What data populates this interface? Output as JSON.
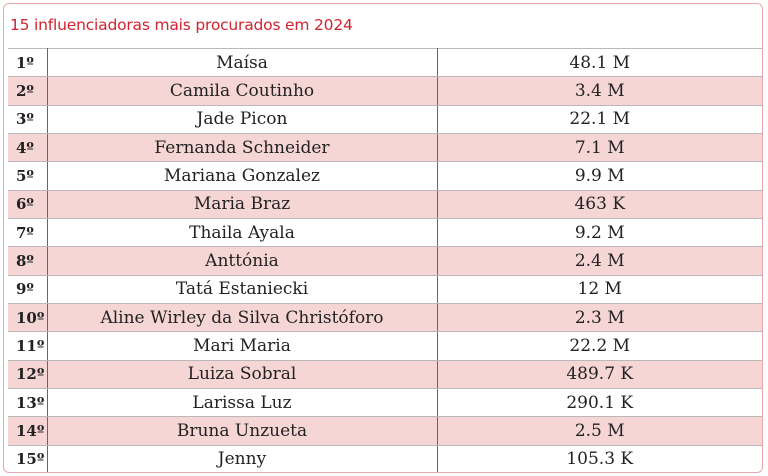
{
  "chart_data": {
    "type": "table",
    "title": "15 influenciadoras mais procurados em 2024",
    "columns": [
      "rank",
      "name",
      "value"
    ],
    "rows": [
      {
        "rank": "1º",
        "name": "Maísa",
        "value": "48.1 M"
      },
      {
        "rank": "2º",
        "name": "Camila Coutinho",
        "value": "3.4 M"
      },
      {
        "rank": "3º",
        "name": "Jade Picon",
        "value": "22.1 M"
      },
      {
        "rank": "4º",
        "name": "Fernanda Schneider",
        "value": "7.1 M"
      },
      {
        "rank": "5º",
        "name": "Mariana Gonzalez",
        "value": "9.9 M"
      },
      {
        "rank": "6º",
        "name": "Maria Braz",
        "value": "463 K"
      },
      {
        "rank": "7º",
        "name": "Thaila Ayala",
        "value": "9.2 M"
      },
      {
        "rank": "8º",
        "name": "Anttónia",
        "value": "2.4 M"
      },
      {
        "rank": "9º",
        "name": "Tatá Estaniecki",
        "value": "12 M"
      },
      {
        "rank": "10º",
        "name": "Aline Wirley da Silva Christóforo",
        "value": "2.3 M"
      },
      {
        "rank": "11º",
        "name": "Mari Maria",
        "value": "22.2 M"
      },
      {
        "rank": "12º",
        "name": "Luiza Sobral",
        "value": "489.7 K"
      },
      {
        "rank": "13º",
        "name": "Larissa Luz",
        "value": "290.1 K"
      },
      {
        "rank": "14º",
        "name": "Bruna Unzueta",
        "value": "2.5 M"
      },
      {
        "rank": "15º",
        "name": "Jenny",
        "value": "105.3 K"
      }
    ]
  },
  "colors": {
    "title": "#d2232f",
    "row_alt": "#f5d6d5",
    "divider": "#c83a44",
    "frame": "#e9a7ad"
  }
}
